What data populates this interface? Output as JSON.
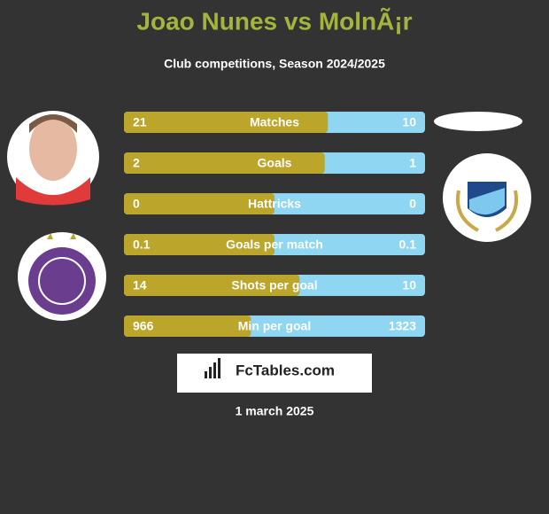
{
  "header": {
    "title": "Joao Nunes vs MolnÃ¡r",
    "subtitle": "Club competitions, Season 2024/2025"
  },
  "rows": [
    {
      "label": "Matches",
      "left": 21,
      "right": 10
    },
    {
      "label": "Goals",
      "left": 2,
      "right": 1
    },
    {
      "label": "Hattricks",
      "left": 0,
      "right": 0
    },
    {
      "label": "Goals per match",
      "left": 0.1,
      "right": 0.1
    },
    {
      "label": "Shots per goal",
      "left": 14,
      "right": 10
    },
    {
      "label": "Min per goal",
      "left": 966,
      "right": 1323
    }
  ],
  "footer": {
    "brand": "FcTables.com",
    "date": "1 march 2025"
  },
  "colors": {
    "left": "#bba52a",
    "right": "#8ed6f2"
  }
}
